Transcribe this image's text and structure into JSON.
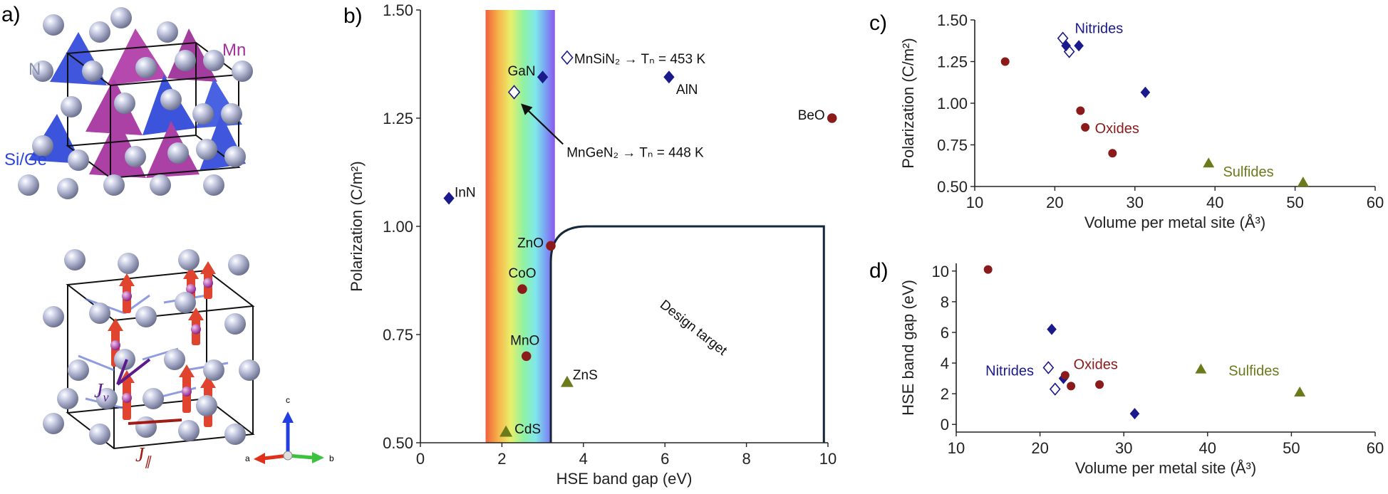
{
  "figure": {
    "panel_labels": [
      "a)",
      "b)",
      "c)",
      "d)"
    ],
    "crystal": {
      "labels": {
        "n": "N",
        "mn": "Mn",
        "si_ge": "Si/Ge",
        "j_v": "J",
        "j_v_sub": "v",
        "j_par": "J",
        "j_par_sub": "∥"
      },
      "axes": {
        "a": "a",
        "b": "b",
        "c": "c"
      },
      "colors": {
        "mn": "#a4309e",
        "si": "#2b46d9",
        "n": "#aeb4d2",
        "spin": "#e0442e",
        "j": "#5c1a8c",
        "j_par": "#a11a14"
      }
    }
  },
  "chart_data": [
    {
      "id": "b",
      "type": "scatter",
      "xlabel": "HSE band gap (eV)",
      "ylabel": "Polarization (C/m²)",
      "xlim": [
        0,
        10
      ],
      "ylim": [
        0.5,
        1.5
      ],
      "xticks": [
        "0",
        "2",
        "4",
        "6",
        "8",
        "10"
      ],
      "yticks": [
        "0.50",
        "0.75",
        "1.00",
        "1.25",
        "1.50"
      ],
      "annotations": {
        "design_target": "Design target",
        "visible_band": [
          1.6,
          3.3
        ],
        "design_region": {
          "x": [
            3.2,
            9.9
          ],
          "y": [
            0.5,
            1.0
          ]
        },
        "mngen2_arrow_from": [
          3.5,
          1.19
        ],
        "mngen2_arrow_to": [
          2.4,
          1.29
        ]
      },
      "points": [
        {
          "name": "InN",
          "label": "InN",
          "x": 0.7,
          "y": 1.065,
          "marker": "diamond",
          "group": "nitride"
        },
        {
          "name": "GaN",
          "label": "GaN",
          "x": 3.0,
          "y": 1.345,
          "marker": "diamond",
          "group": "nitride"
        },
        {
          "name": "AlN",
          "label": "AlN",
          "x": 6.1,
          "y": 1.345,
          "marker": "diamond",
          "group": "nitride"
        },
        {
          "name": "MnSiN2",
          "label": "MnSiN₂ → Tₙ = 453 K",
          "x": 3.6,
          "y": 1.39,
          "marker": "diamond-open",
          "group": "nitride"
        },
        {
          "name": "MnGeN2",
          "label": "MnGeN₂ → Tₙ = 448 K",
          "x": 2.3,
          "y": 1.31,
          "marker": "diamond-open",
          "group": "nitride"
        },
        {
          "name": "BeO",
          "label": "BeO",
          "x": 10.1,
          "y": 1.25,
          "marker": "circle",
          "group": "oxide"
        },
        {
          "name": "ZnO",
          "label": "ZnO",
          "x": 3.2,
          "y": 0.955,
          "marker": "circle",
          "group": "oxide"
        },
        {
          "name": "CoO",
          "label": "CoO",
          "x": 2.5,
          "y": 0.855,
          "marker": "circle",
          "group": "oxide"
        },
        {
          "name": "MnO",
          "label": "MnO",
          "x": 2.6,
          "y": 0.7,
          "marker": "circle",
          "group": "oxide"
        },
        {
          "name": "ZnS",
          "label": "ZnS",
          "x": 3.6,
          "y": 0.64,
          "marker": "triangle",
          "group": "sulfide"
        },
        {
          "name": "CdS",
          "label": "CdS",
          "x": 2.1,
          "y": 0.525,
          "marker": "triangle",
          "group": "sulfide"
        }
      ]
    },
    {
      "id": "c",
      "type": "scatter",
      "xlabel": "Volume per metal site (Å³)",
      "ylabel": "Polarization (C/m²)",
      "xlim": [
        10,
        60
      ],
      "ylim": [
        0.5,
        1.5
      ],
      "xticks": [
        "10",
        "20",
        "30",
        "40",
        "50",
        "60"
      ],
      "yticks": [
        "0.50",
        "0.75",
        "1.00",
        "1.25",
        "1.50"
      ],
      "groups": [
        {
          "name": "Nitrides",
          "color": "#1a1a8c",
          "lx": 22.5,
          "ly": 1.42
        },
        {
          "name": "Oxides",
          "color": "#8b1a1a",
          "lx": 25.0,
          "ly": 0.82
        },
        {
          "name": "Sulfides",
          "color": "#6b7a1a",
          "lx": 41.0,
          "ly": 0.56
        }
      ],
      "points": [
        {
          "x": 21.0,
          "y": 1.39,
          "marker": "diamond-open",
          "group": "nitride"
        },
        {
          "x": 21.8,
          "y": 1.31,
          "marker": "diamond-open",
          "group": "nitride"
        },
        {
          "x": 21.4,
          "y": 1.345,
          "marker": "diamond",
          "group": "nitride"
        },
        {
          "x": 23.0,
          "y": 1.345,
          "marker": "diamond",
          "group": "nitride"
        },
        {
          "x": 31.3,
          "y": 1.065,
          "marker": "diamond",
          "group": "nitride"
        },
        {
          "x": 13.8,
          "y": 1.25,
          "marker": "circle",
          "group": "oxide"
        },
        {
          "x": 23.2,
          "y": 0.955,
          "marker": "circle",
          "group": "oxide"
        },
        {
          "x": 23.8,
          "y": 0.855,
          "marker": "circle",
          "group": "oxide"
        },
        {
          "x": 27.2,
          "y": 0.7,
          "marker": "circle",
          "group": "oxide"
        },
        {
          "x": 39.2,
          "y": 0.64,
          "marker": "triangle",
          "group": "sulfide"
        },
        {
          "x": 51.0,
          "y": 0.525,
          "marker": "triangle",
          "group": "sulfide"
        }
      ]
    },
    {
      "id": "d",
      "type": "scatter",
      "xlabel": "Volume per metal site (Å³)",
      "ylabel": "HSE band gap (eV)",
      "xlim": [
        10,
        60
      ],
      "ylim": [
        -0.5,
        10.5
      ],
      "xticks": [
        "10",
        "20",
        "30",
        "40",
        "50",
        "60"
      ],
      "yticks": [
        "0",
        "2",
        "4",
        "6",
        "8",
        "10"
      ],
      "groups": [
        {
          "name": "Nitrides",
          "color": "#1a1a8c",
          "lx": 13.5,
          "ly": 3.2
        },
        {
          "name": "Oxides",
          "color": "#8b1a1a",
          "lx": 24.0,
          "ly": 3.6
        },
        {
          "name": "Sulfides",
          "color": "#6b7a1a",
          "lx": 42.5,
          "ly": 3.2
        }
      ],
      "points": [
        {
          "x": 21.0,
          "y": 3.7,
          "marker": "diamond-open",
          "group": "nitride"
        },
        {
          "x": 21.8,
          "y": 2.3,
          "marker": "diamond-open",
          "group": "nitride"
        },
        {
          "x": 21.4,
          "y": 6.2,
          "marker": "diamond",
          "group": "nitride"
        },
        {
          "x": 22.8,
          "y": 3.0,
          "marker": "diamond",
          "group": "nitride"
        },
        {
          "x": 31.3,
          "y": 0.7,
          "marker": "diamond",
          "group": "nitride"
        },
        {
          "x": 13.8,
          "y": 10.1,
          "marker": "circle",
          "group": "oxide"
        },
        {
          "x": 23.0,
          "y": 3.2,
          "marker": "circle",
          "group": "oxide"
        },
        {
          "x": 23.7,
          "y": 2.5,
          "marker": "circle",
          "group": "oxide"
        },
        {
          "x": 27.1,
          "y": 2.6,
          "marker": "circle",
          "group": "oxide"
        },
        {
          "x": 39.2,
          "y": 3.6,
          "marker": "triangle",
          "group": "sulfide"
        },
        {
          "x": 51.0,
          "y": 2.1,
          "marker": "triangle",
          "group": "sulfide"
        }
      ]
    }
  ],
  "colors": {
    "nitride": "#1a1a8c",
    "oxide": "#8b1a1a",
    "sulfide": "#6b7a1a",
    "axis": "#222222",
    "target": "#16273a"
  }
}
